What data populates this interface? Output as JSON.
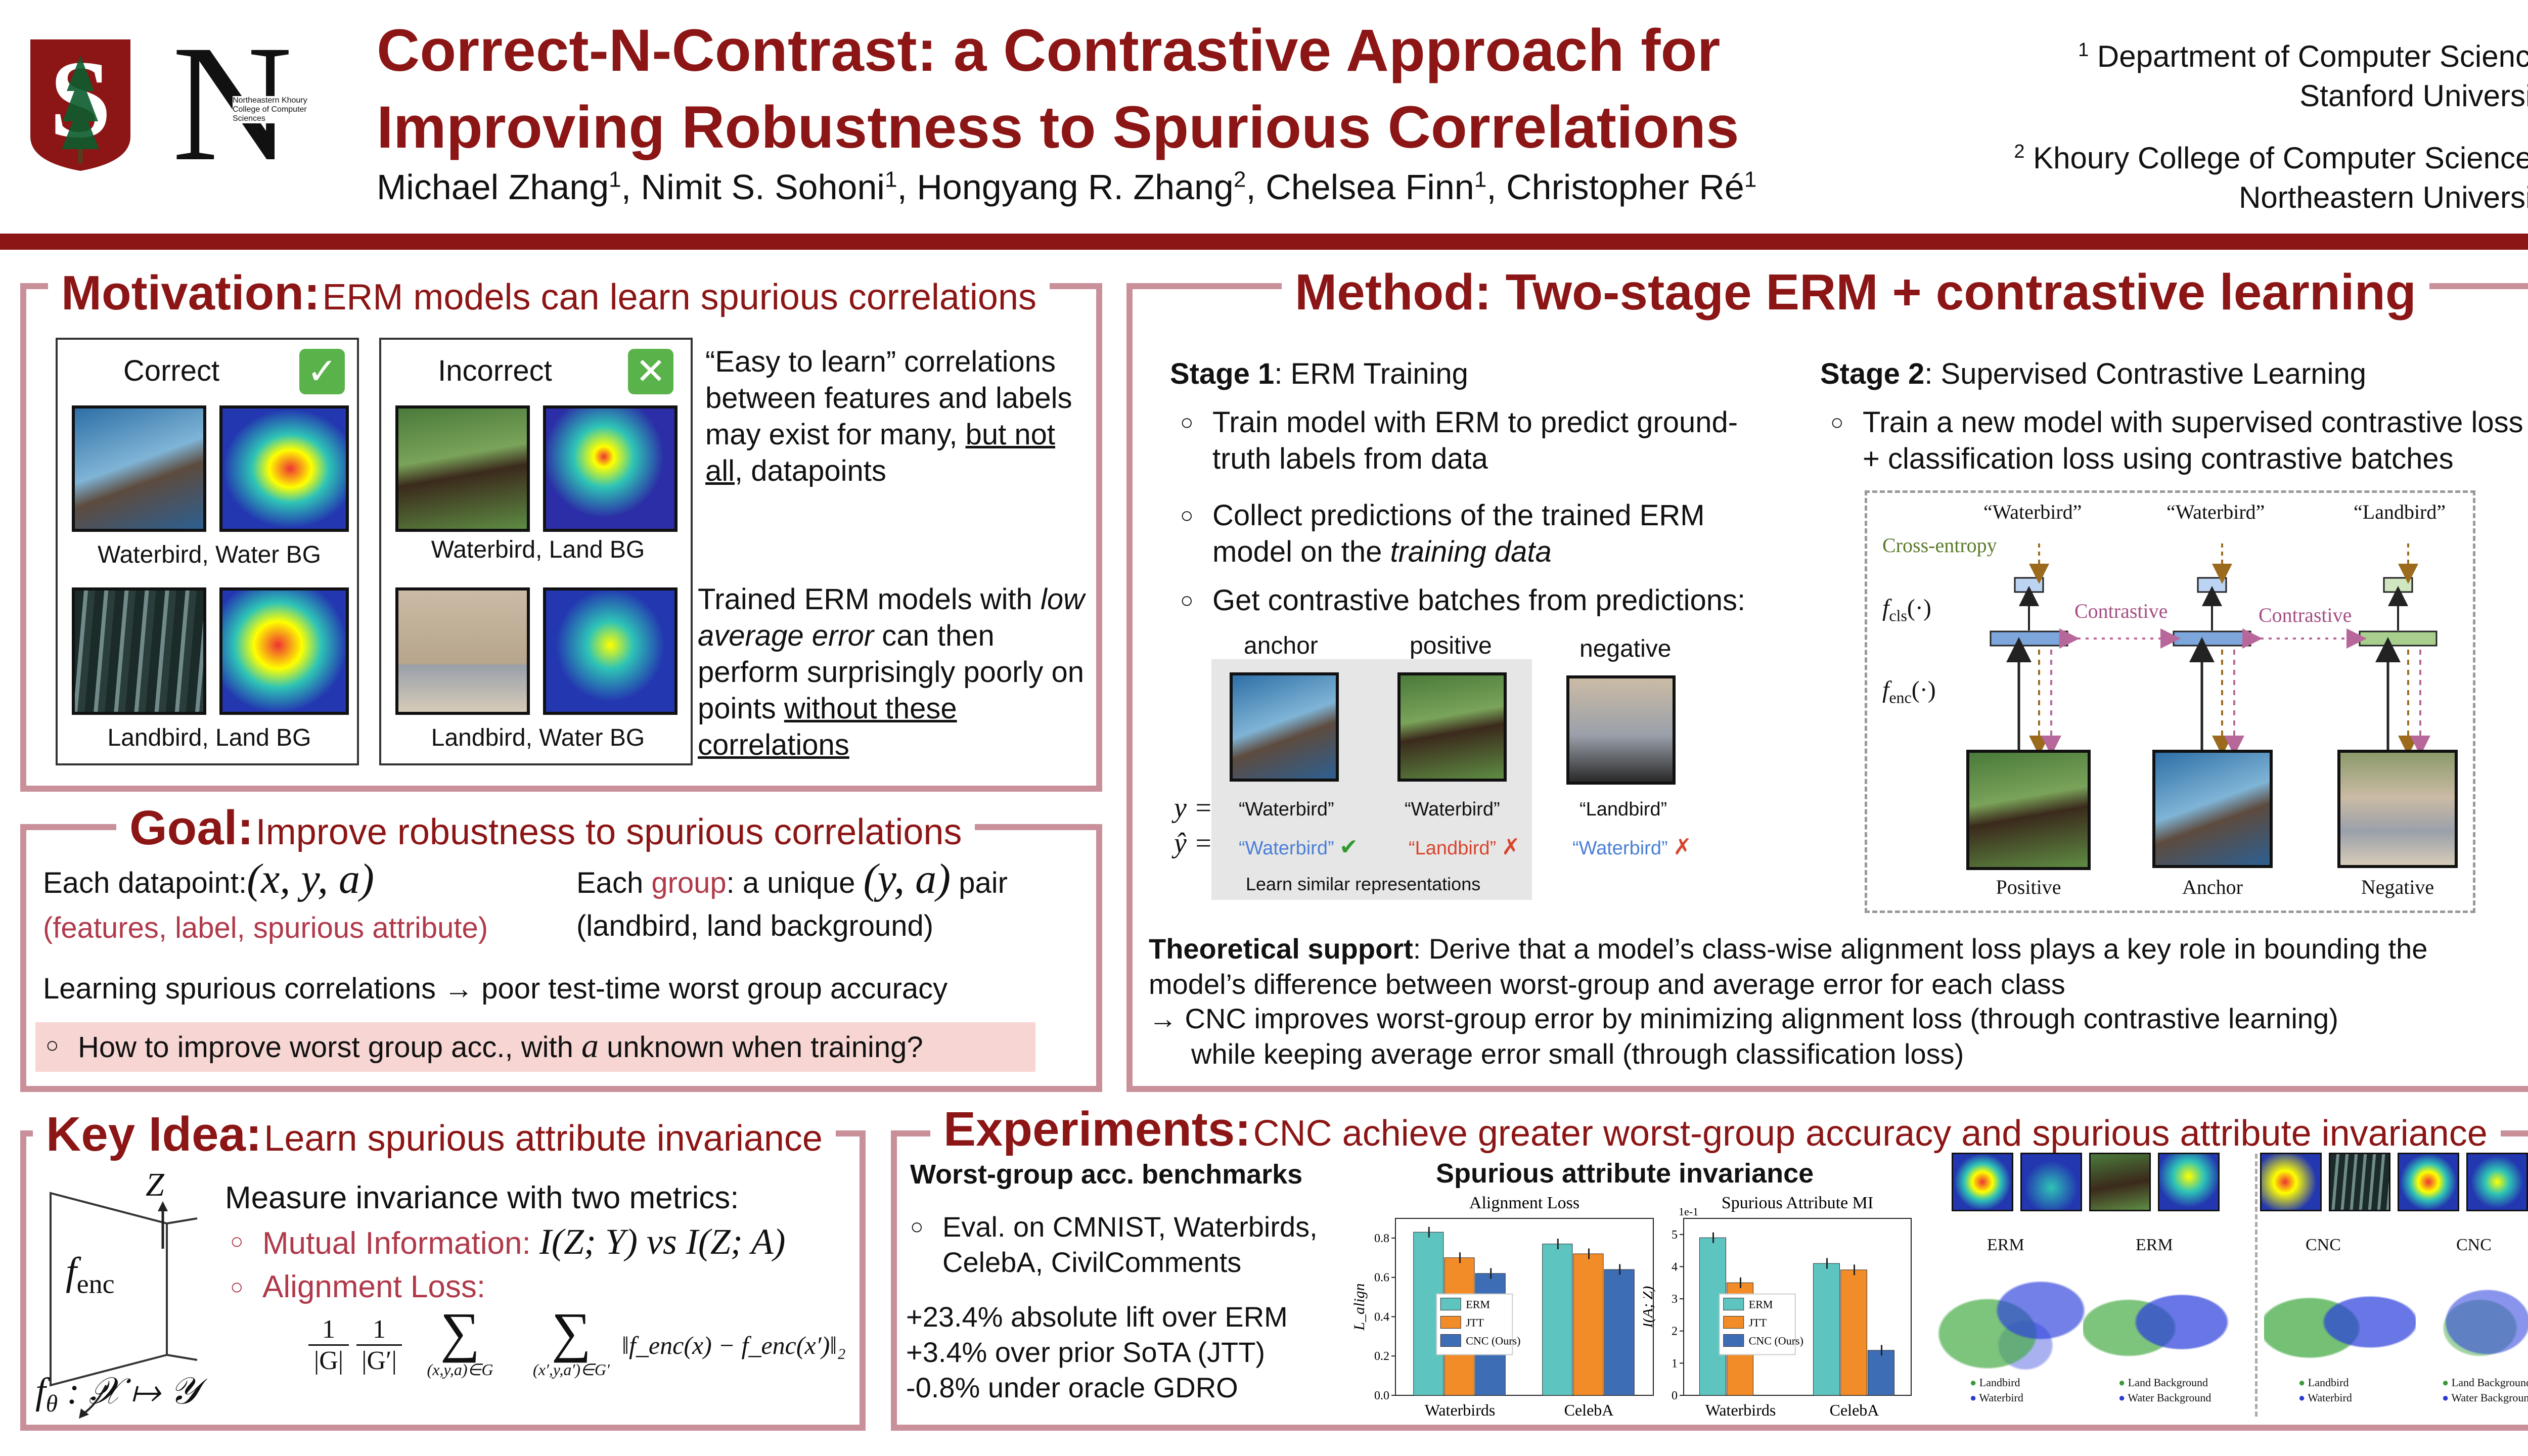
{
  "header": {
    "title_line1": "Correct-N-Contrast: a Contrastive Approach for",
    "title_line2": "Improving Robustness to Spurious Correlations",
    "authors": [
      {
        "name": "Michael Zhang",
        "sup": "1"
      },
      {
        "name": "Nimit S. Sohoni",
        "sup": "1"
      },
      {
        "name": "Hongyang R. Zhang",
        "sup": "2"
      },
      {
        "name": "Chelsea Finn",
        "sup": "1"
      },
      {
        "name": "Christopher Ré",
        "sup": "1"
      }
    ],
    "aff1_sup": "1",
    "aff1_line1": "Department of Computer Science,",
    "aff1_line2": "Stanford University",
    "aff2_sup": "2",
    "aff2_line1": "Khoury College of Computer Sciences,",
    "aff2_line2": "Northeastern University",
    "logo_n_letter": "N",
    "logo_n_small": "Northeastern Khoury College of Computer Sciences"
  },
  "motivation": {
    "title": "Motivation:",
    "subtitle": "ERM models can learn spurious correlations",
    "correct_label": "Correct",
    "incorrect_label": "Incorrect",
    "cap_wb_wbg": "Waterbird, Water BG",
    "cap_lb_lbg": "Landbird, Land BG",
    "cap_wb_lbg": "Waterbird, Land BG",
    "cap_lb_wbg": "Landbird, Water BG",
    "p1_a": "“Easy to learn” correlations between features and labels may exist for many, ",
    "p1_u": "but not all",
    "p1_b": ", datapoints",
    "p2_a": "Trained ERM models with ",
    "p2_i": "low average error",
    "p2_b": " can then perform surprisingly poorly on points ",
    "p2_u": "without these correlations"
  },
  "goal": {
    "title": "Goal:",
    "subtitle": "Improve robustness to spurious correlations",
    "each_datapoint": "Each datapoint:",
    "xya": "(x, y, a)",
    "features": "(features, label, spurious attribute)",
    "each": "Each ",
    "group": "group",
    "unique": ": a unique ",
    "ya": "(y, a)",
    "pair": " pair",
    "example": "(landbird, land background)",
    "learning": "Learning spurious correlations → poor test-time worst group accuracy",
    "question_a": "How to improve worst group acc., with ",
    "question_var": "a",
    "question_b": " unknown when training?"
  },
  "keyidea": {
    "title": "Key Idea:",
    "subtitle": "Learn spurious attribute invariance",
    "measure": "Measure invariance with two metrics:",
    "mi_label": "Mutual Information: ",
    "mi_formula": "I(Z; Y) vs I(Z; A)",
    "al_label": "Alignment Loss:",
    "z": "Z",
    "fenc": "f",
    "fenc_sub": "enc",
    "ftheta": "f",
    "ftheta_sub": "θ",
    "ftheta_rest": " : 𝒳 ↦ 𝒴",
    "formula_frac1": "1/|G|",
    "formula_frac2": "1/|G′|",
    "formula_sum1": "(x,y,a)∈G",
    "formula_sum2": "(x′,y,a′)∈G′",
    "formula_norm": "‖f_enc(x) − f_enc(x′)‖₂"
  },
  "method": {
    "title": "Method: Two-stage ERM + contrastive learning",
    "stage1_b": "Stage 1",
    "stage1_rest": ": ERM Training",
    "s1_b1": "Train model with ERM to predict ground-truth labels from data",
    "s1_b2_a": "Collect predictions of the trained ERM model on the ",
    "s1_b2_i": "training data",
    "s1_b3": "Get contrastive batches from predictions:",
    "anchor": "anchor",
    "positive": "positive",
    "negative": "negative",
    "y_eq": "y =",
    "yhat_eq": "ŷ =",
    "y_vals": [
      "“Waterbird”",
      "“Waterbird”",
      "“Landbird”"
    ],
    "yhat_vals": [
      "“Waterbird”",
      "“Landbird”",
      "“Waterbird”"
    ],
    "learn_similar": "Learn similar representations",
    "stage2_b": "Stage 2",
    "stage2_rest": ": Supervised Contrastive Learning",
    "s2_b1": "Train a new model with supervised contrastive loss + classification loss using contrastive batches",
    "diag_labels": [
      "“Waterbird”",
      "“Waterbird”",
      "“Landbird”"
    ],
    "cross_entropy": "Cross-entropy",
    "contrastive": "Contrastive",
    "fcls": "f",
    "fcls_sub": "cls",
    "fcls_rest": "(·)",
    "fenc_diag": "f",
    "fenc_diag_sub": "enc",
    "fenc_diag_rest": "(·)",
    "diag_img_labels": [
      "Positive",
      "Anchor",
      "Negative"
    ],
    "theory_b": "Theoretical support",
    "theory_rest": ": Derive that a model’s class-wise alignment loss plays a key role in bounding the model’s difference between worst-group and average error for each class",
    "theory_arrow1": "→  CNC improves worst-group error by minimizing alignment loss (through contrastive learning)",
    "theory_arrow2": "while keeping average error small (through classification loss)"
  },
  "experiments": {
    "title": "Experiments:",
    "subtitle": "CNC achieve greater worst-group accuracy and spurious attribute invariance",
    "bench_title": "Worst-group acc. benchmarks",
    "bench_item": "Eval. on CMNIST, Waterbirds, CelebA, CivilComments",
    "lift1": "+23.4% absolute lift over ERM",
    "lift2": "+3.4% over prior SoTA (JTT)",
    "lift3": "-0.8% under oracle GDRO",
    "sai_title": "Spurious attribute invariance",
    "erm": "ERM",
    "cnc": "CNC",
    "tsne_legend_1a": "Landbird",
    "tsne_legend_1b": "Waterbird",
    "tsne_legend_2a": "Land Background",
    "tsne_legend_2b": "Water Background"
  },
  "colors": {
    "maroon": "#8c1515",
    "border": "#c9909a",
    "erm": "#5ec4c0",
    "jtt": "#f28c28",
    "cnc": "#3d6db5",
    "highlight": "#f6d5d2"
  },
  "chart_data": [
    {
      "type": "bar",
      "title": "Alignment Loss",
      "categories": [
        "Waterbirds",
        "CelebA"
      ],
      "ylabel": "L_align",
      "ylim": [
        0,
        0.9
      ],
      "yticks": [
        "0.0",
        "0.2",
        "0.4",
        "0.6",
        "0.8"
      ],
      "legend": "center",
      "series": [
        {
          "name": "ERM",
          "values": [
            0.83,
            0.77
          ]
        },
        {
          "name": "JTT",
          "values": [
            0.7,
            0.72
          ]
        },
        {
          "name": "CNC (Ours)",
          "values": [
            0.62,
            0.64
          ]
        }
      ]
    },
    {
      "type": "bar",
      "title": "Spurious Attribute MI",
      "categories": [
        "Waterbirds",
        "CelebA"
      ],
      "ylabel": "Î(A; Z)",
      "ylim": [
        0,
        5.5
      ],
      "yticks": [
        "0",
        "1",
        "2",
        "3",
        "4",
        "5"
      ],
      "scale_note": "1e-1",
      "legend": "center",
      "series": [
        {
          "name": "ERM",
          "values": [
            4.9,
            4.1
          ]
        },
        {
          "name": "JTT",
          "values": [
            3.5,
            3.9
          ]
        },
        {
          "name": "CNC (Ours)",
          "values": [
            0.0,
            1.4
          ]
        }
      ]
    }
  ]
}
